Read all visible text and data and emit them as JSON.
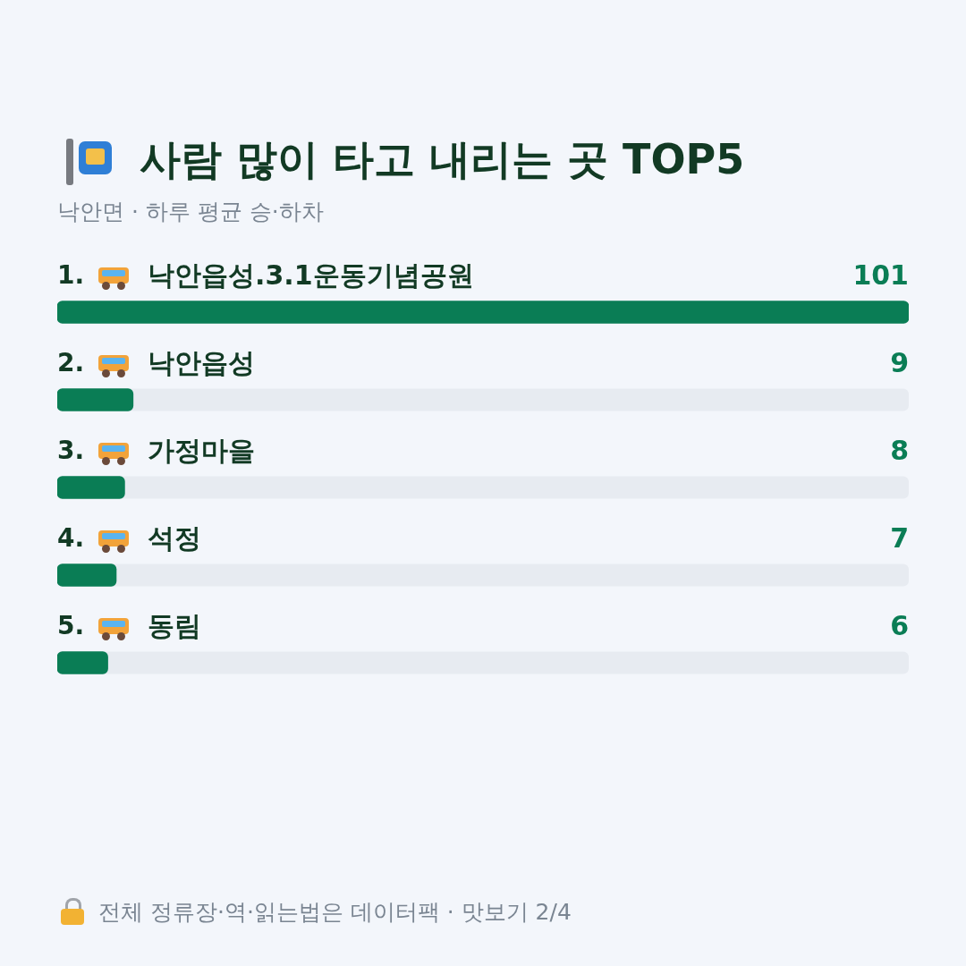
{
  "chart_data": {
    "type": "bar",
    "orientation": "horizontal",
    "title": "사람 많이 타고 내리는 곳 TOP5",
    "subtitle": "낙안면 · 하루 평균 승·하차",
    "categories": [
      "1. 낙안읍성.3.1운동기념공원",
      "2. 낙안읍성",
      "3. 가정마을",
      "4. 석정",
      "5. 동림"
    ],
    "values": [
      101,
      9,
      8,
      7,
      6
    ],
    "color": "#0a7d55",
    "data_labels": true,
    "legend": false,
    "annotations": [
      "전체 정류장·역·읽는법은 데이터팩 · 맛보기 2/4"
    ]
  }
}
